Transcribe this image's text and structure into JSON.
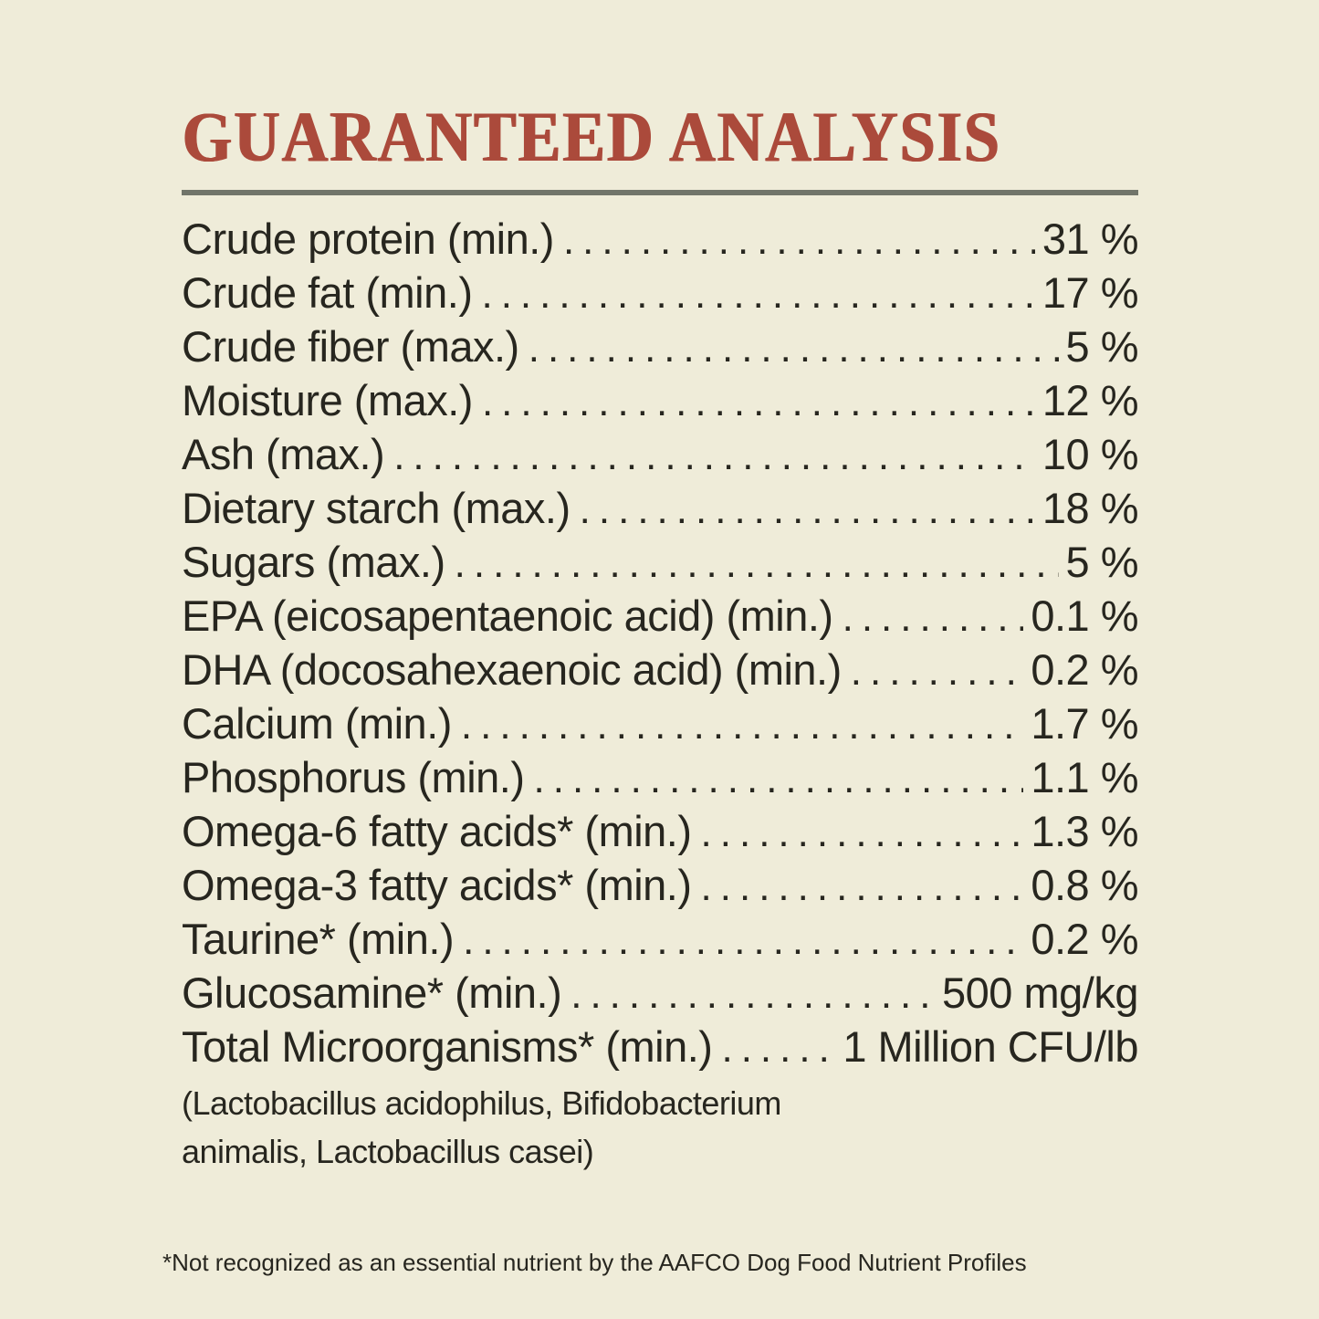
{
  "page": {
    "background_color": "#efecd9",
    "text_color": "#27261f",
    "title_color": "#ab4a3b",
    "rule_color": "#71756a",
    "title": "GUARANTEED ANALYSIS"
  },
  "analysis": {
    "rows": [
      {
        "label": "Crude protein (min.)",
        "value": "31 %"
      },
      {
        "label": "Crude fat (min.)",
        "value": "17 %"
      },
      {
        "label": "Crude fiber (max.)",
        "value": "5 %"
      },
      {
        "label": "Moisture (max.)",
        "value": "12 %"
      },
      {
        "label": "Ash (max.)",
        "value": "10 %"
      },
      {
        "label": "Dietary starch (max.)",
        "value": "18 %"
      },
      {
        "label": "Sugars (max.)",
        "value": "5 %"
      },
      {
        "label": "EPA (eicosapentaenoic acid) (min.)",
        "value": "0.1 %"
      },
      {
        "label": "DHA (docosahexaenoic acid) (min.)",
        "value": "0.2 %"
      },
      {
        "label": "Calcium (min.)",
        "value": "1.7 %"
      },
      {
        "label": "Phosphorus (min.)",
        "value": "1.1 %"
      },
      {
        "label": "Omega-6 fatty acids* (min.)",
        "value": "1.3 %"
      },
      {
        "label": "Omega-3 fatty acids* (min.)",
        "value": "0.8 %"
      },
      {
        "label": "Taurine* (min.)",
        "value": "0.2 %"
      },
      {
        "label": "Glucosamine* (min.)",
        "value": "500 mg/kg"
      },
      {
        "label": "Total Microorganisms* (min.)",
        "value": "1 Million CFU/lb"
      }
    ],
    "microorganisms_note_lines": [
      "(Lactobacillus acidophilus, Bifidobacterium",
      "animalis, Lactobacillus casei)"
    ],
    "footnote": "*Not recognized as an essential nutrient by the AAFCO Dog Food Nutrient Profiles"
  }
}
